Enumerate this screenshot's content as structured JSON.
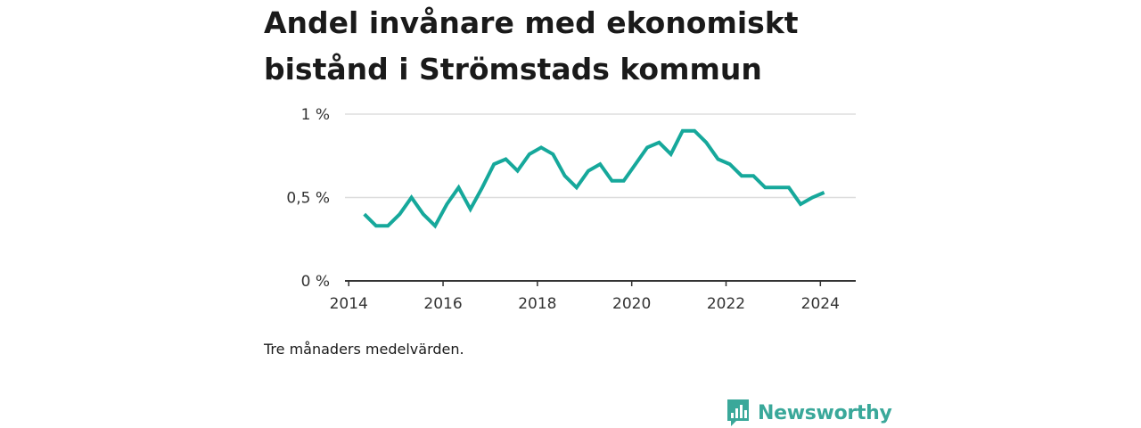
{
  "title_line1": "Andel invånare med ekonomiskt",
  "title_line2": "bistånd i Strömstads kommun",
  "note": "Tre månaders medelvärden.",
  "brand": {
    "name": "Newsworthy",
    "icon": "newsworthy-logo-icon",
    "color": "#3aa89a"
  },
  "chart_data": {
    "type": "line",
    "title": "Andel invånare med ekonomiskt bistånd i Strömstads kommun",
    "xlabel": "",
    "ylabel": "",
    "xlim": [
      2013.92,
      2024.75
    ],
    "ylim": [
      0,
      1
    ],
    "grid": true,
    "line_color": "#16a89b",
    "x_ticks": [
      2014,
      2016,
      2018,
      2020,
      2022,
      2024
    ],
    "x_tick_labels": [
      "2014",
      "2016",
      "2018",
      "2020",
      "2022",
      "2024"
    ],
    "y_ticks": [
      0,
      0.5,
      1
    ],
    "y_tick_labels": [
      "0 %",
      "0,5 %",
      "1 %"
    ],
    "series": [
      {
        "x": [
          2014.33,
          2014.58,
          2014.83,
          2015.08,
          2015.33,
          2015.58,
          2015.83,
          2016.08,
          2016.33,
          2016.58,
          2016.83,
          2017.08,
          2017.33,
          2017.58,
          2017.83,
          2018.08,
          2018.33,
          2018.58,
          2018.83,
          2019.08,
          2019.33,
          2019.58,
          2019.83,
          2020.08,
          2020.33,
          2020.58,
          2020.83,
          2021.08,
          2021.33,
          2021.58,
          2021.83,
          2022.08,
          2022.33,
          2022.58,
          2022.83,
          2023.08,
          2023.33,
          2023.58,
          2023.83,
          2024.08
        ],
        "values": [
          0.4,
          0.33,
          0.33,
          0.4,
          0.5,
          0.4,
          0.33,
          0.46,
          0.56,
          0.43,
          0.56,
          0.7,
          0.73,
          0.66,
          0.76,
          0.8,
          0.76,
          0.63,
          0.56,
          0.66,
          0.7,
          0.6,
          0.6,
          0.7,
          0.8,
          0.83,
          0.76,
          0.9,
          0.9,
          0.83,
          0.73,
          0.7,
          0.63,
          0.63,
          0.56,
          0.56,
          0.56,
          0.46,
          0.5,
          0.53
        ]
      }
    ]
  }
}
